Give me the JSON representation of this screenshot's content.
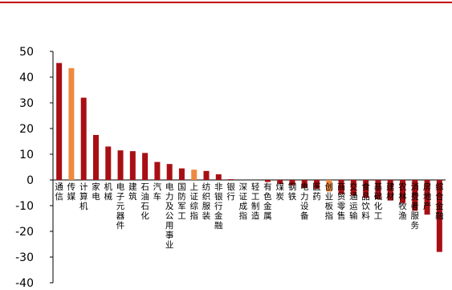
{
  "chart_data": {
    "type": "bar",
    "title": "",
    "xlabel": "",
    "ylabel": "",
    "ylim": [
      -40,
      50
    ],
    "yticks": [
      50,
      40,
      30,
      20,
      10,
      0,
      -10,
      -20,
      -30,
      -40
    ],
    "grid": false,
    "colors": {
      "default": "#a80f14",
      "highlight": "#ed8a3f",
      "rule": "#c00000",
      "axis": "#000000"
    },
    "categories": [
      "通信",
      "传媒",
      "计算机",
      "家电",
      "机械",
      "电子元器件",
      "建筑",
      "石油石化",
      "汽车",
      "电力及公用事业",
      "国防军工",
      "上证综指",
      "纺织服装",
      "非银行金融",
      "银行",
      "深证成指",
      "轻工制造",
      "有色金属",
      "煤炭",
      "钢铁",
      "电力设备",
      "医药",
      "创业板指",
      "商贸零售",
      "交通运输",
      "食品饮料",
      "基础化工",
      "建材",
      "农林牧渔",
      "消费者服务",
      "房地产",
      "综合金融"
    ],
    "values": [
      45.5,
      43.5,
      32,
      17.5,
      13,
      11.5,
      11.2,
      10.5,
      7,
      6.2,
      4.5,
      4,
      3.5,
      2.2,
      0.3,
      0,
      0,
      -0.8,
      -1.5,
      -2,
      -3,
      -3.5,
      -4.5,
      -5.5,
      -6,
      -7,
      -7.5,
      -8,
      -9,
      -12,
      -13.5,
      -28
    ],
    "highlight": [
      false,
      true,
      false,
      false,
      false,
      false,
      false,
      false,
      false,
      false,
      false,
      true,
      false,
      false,
      false,
      false,
      false,
      false,
      false,
      false,
      false,
      false,
      true,
      false,
      false,
      false,
      false,
      false,
      false,
      false,
      false,
      false
    ]
  }
}
